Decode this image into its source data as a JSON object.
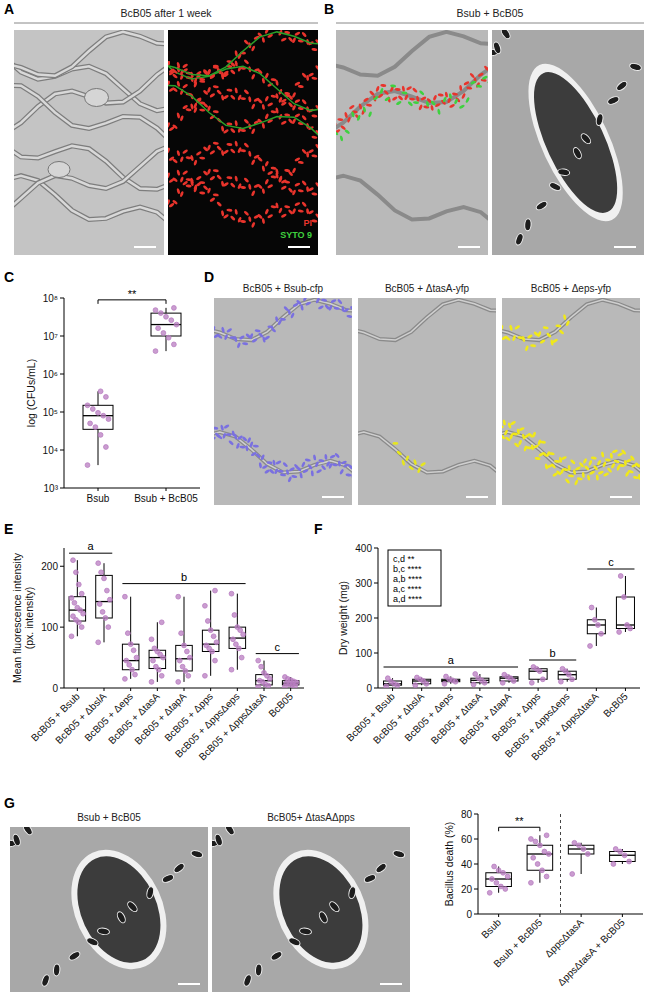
{
  "panel_letters": [
    "A",
    "B",
    "C",
    "D",
    "E",
    "F",
    "G"
  ],
  "images": {
    "A": {
      "title": "BcB05 after 1 week",
      "legend": [
        {
          "label": "PI",
          "color": "#e8342c"
        },
        {
          "label": "SYTO 9",
          "color": "#3fd13f"
        }
      ]
    },
    "B": {
      "title": "Bsub + BcB05"
    },
    "D": {
      "titles": [
        "BcB05 + Bsub-cfp",
        "BcB05 + ΔtasA-yfp",
        "BcB05 + Δeps-yfp"
      ]
    },
    "G": {
      "titles": [
        "Bsub + BcB05",
        "BcB05+ ΔtasAΔpps"
      ]
    }
  },
  "chart_data": [
    {
      "type": "box",
      "y_label": "log (CFUs/mL)",
      "log": "y",
      "color": "#b87cc0",
      "categories": [
        "Bsub",
        "Bsub + BcB05"
      ],
      "ylim": [
        1000,
        100000000
      ],
      "yticks": [
        {
          "value": 1000,
          "label": "10³"
        },
        {
          "value": 10000,
          "label": "10⁴"
        },
        {
          "value": 100000,
          "label": "10⁵"
        },
        {
          "value": 1000000,
          "label": "10⁶"
        },
        {
          "value": 10000000,
          "label": "10⁷"
        },
        {
          "value": 100000000,
          "label": "10⁸"
        }
      ],
      "boxes": [
        {
          "min": 4000,
          "q1": 35000,
          "median": 80000,
          "q3": 150000,
          "max": 350000,
          "points": [
            4000,
            12000,
            25000,
            40000,
            50000,
            65000,
            80000,
            95000,
            120000,
            150000,
            250000,
            350000
          ]
        },
        {
          "min": 4000000,
          "q1": 10000000,
          "median": 20000000,
          "q3": 40000000,
          "max": 55000000,
          "points": [
            4000000,
            6000000,
            9000000,
            12000000,
            16000000,
            20000000,
            26000000,
            32000000,
            40000000,
            48000000,
            55000000
          ]
        }
      ],
      "significance": {
        "label": "**",
        "categories": [
          "Bsub",
          "Bsub + BcB05"
        ]
      }
    },
    {
      "type": "box",
      "y_label": "Mean fluorescence intensity (px. intensity)",
      "color": "#b87cc0",
      "categories": [
        "BcB05 + Bsub",
        "BcB05 + ΔbslA",
        "BcB05 + Δeps",
        "BcB05 + ΔtasA",
        "BcB05 + ΔtapA",
        "BcB05 + Δpps",
        "BcB05 + ΔppsΔeps",
        "BcB05 + ΔppsΔtasA",
        "BcB05"
      ],
      "ylim": [
        0,
        230
      ],
      "yticks": [
        0,
        100,
        200
      ],
      "boxes": [
        {
          "min": 85,
          "q1": 110,
          "median": 128,
          "q3": 150,
          "max": 210,
          "points": [
            85,
            100,
            108,
            112,
            118,
            122,
            128,
            132,
            140,
            148,
            155,
            170,
            190,
            210
          ]
        },
        {
          "min": 75,
          "q1": 115,
          "median": 142,
          "q3": 185,
          "max": 205,
          "points": [
            75,
            100,
            115,
            125,
            138,
            145,
            160,
            180,
            190,
            205
          ]
        },
        {
          "min": 15,
          "q1": 30,
          "median": 45,
          "q3": 72,
          "max": 150,
          "points": [
            15,
            22,
            30,
            38,
            45,
            50,
            62,
            72,
            90,
            150
          ]
        },
        {
          "min": 10,
          "q1": 32,
          "median": 50,
          "q3": 62,
          "max": 108,
          "points": [
            10,
            20,
            30,
            35,
            45,
            50,
            55,
            60,
            65,
            80,
            108
          ]
        },
        {
          "min": 10,
          "q1": 28,
          "median": 48,
          "q3": 70,
          "max": 150,
          "points": [
            10,
            20,
            28,
            35,
            45,
            50,
            60,
            70,
            90,
            150
          ]
        },
        {
          "min": 20,
          "q1": 60,
          "median": 72,
          "q3": 95,
          "max": 160,
          "points": [
            20,
            45,
            60,
            65,
            70,
            75,
            85,
            95,
            110,
            135,
            160
          ]
        },
        {
          "min": 30,
          "q1": 65,
          "median": 82,
          "q3": 100,
          "max": 155,
          "points": [
            30,
            50,
            65,
            72,
            80,
            88,
            95,
            100,
            120,
            155
          ]
        },
        {
          "min": 2,
          "q1": 5,
          "median": 12,
          "q3": 22,
          "max": 45,
          "points": [
            2,
            4,
            6,
            10,
            12,
            15,
            20,
            25,
            35,
            45
          ]
        },
        {
          "min": 2,
          "q1": 5,
          "median": 8,
          "q3": 12,
          "max": 18,
          "points": [
            2,
            3,
            5,
            6,
            8,
            9,
            11,
            13,
            15,
            18
          ]
        }
      ],
      "groups": [
        {
          "label": "a",
          "categories": [
            "BcB05 + Bsub",
            "BcB05 + ΔbslA"
          ]
        },
        {
          "label": "b",
          "categories": [
            "BcB05 + Δeps",
            "BcB05 + ΔppsΔeps"
          ]
        },
        {
          "label": "c",
          "categories": [
            "BcB05 + ΔppsΔtasA",
            "BcB05"
          ]
        }
      ]
    },
    {
      "type": "box",
      "y_label": "Dry weight (mg)",
      "color": "#b87cc0",
      "categories": [
        "BcB05 + Bsub",
        "BcB05 + ΔbslA",
        "BcB05 + Δeps",
        "BcB05 + ΔtasA",
        "BcB05 + ΔtapA",
        "BcB05 + Δpps",
        "BcB05 + ΔppsΔeps",
        "BcB05 + ΔppsΔtasA",
        "BcB05"
      ],
      "ylim": [
        0,
        400
      ],
      "yticks": [
        0,
        100,
        200,
        300,
        400
      ],
      "boxes": [
        {
          "min": 5,
          "q1": 8,
          "median": 12,
          "q3": 20,
          "max": 28,
          "points": [
            5,
            8,
            12,
            18,
            28
          ]
        },
        {
          "min": 8,
          "q1": 12,
          "median": 20,
          "q3": 25,
          "max": 30,
          "points": [
            8,
            12,
            20,
            25,
            30
          ]
        },
        {
          "min": 12,
          "q1": 18,
          "median": 22,
          "q3": 25,
          "max": 33,
          "points": [
            12,
            18,
            22,
            25,
            33
          ]
        },
        {
          "min": 10,
          "q1": 15,
          "median": 22,
          "q3": 28,
          "max": 40,
          "points": [
            10,
            15,
            22,
            28,
            40
          ]
        },
        {
          "min": 15,
          "q1": 20,
          "median": 28,
          "q3": 32,
          "max": 38,
          "points": [
            15,
            20,
            28,
            32,
            38
          ]
        },
        {
          "min": 15,
          "q1": 25,
          "median": 48,
          "q3": 55,
          "max": 60,
          "points": [
            15,
            25,
            48,
            55,
            60
          ]
        },
        {
          "min": 18,
          "q1": 25,
          "median": 38,
          "q3": 48,
          "max": 55,
          "points": [
            18,
            25,
            38,
            48,
            55
          ]
        },
        {
          "min": 120,
          "q1": 155,
          "median": 180,
          "q3": 195,
          "max": 230,
          "points": [
            120,
            155,
            180,
            195,
            230
          ]
        },
        {
          "min": 160,
          "q1": 170,
          "median": 180,
          "q3": 260,
          "max": 320,
          "points": [
            160,
            170,
            180,
            260,
            320
          ]
        }
      ],
      "groups": [
        {
          "label": "a",
          "categories": [
            "BcB05 + Bsub",
            "BcB05 + ΔtapA"
          ]
        },
        {
          "label": "b",
          "categories": [
            "BcB05 + Δpps",
            "BcB05 + ΔppsΔeps"
          ]
        },
        {
          "label": "c",
          "categories": [
            "BcB05 + ΔppsΔtasA",
            "BcB05"
          ]
        }
      ],
      "inset_text": [
        "c,d **",
        "b,c ****",
        "a,b ****",
        "a,c ****",
        "a,d ****"
      ]
    },
    {
      "type": "box",
      "y_label": "Bacillus death (%)",
      "color": "#b87cc0",
      "categories": [
        "Bsub",
        "Bsub + BcB05",
        "ΔppsΔtasA",
        "ΔppsΔtasA + BcB05"
      ],
      "ylim": [
        0,
        80
      ],
      "yticks": [
        0,
        20,
        40,
        60,
        80
      ],
      "boxes": [
        {
          "min": 17,
          "q1": 22,
          "median": 28,
          "q3": 33,
          "max": 38,
          "points": [
            17,
            20,
            22,
            25,
            28,
            30,
            33,
            35,
            38
          ]
        },
        {
          "min": 25,
          "q1": 35,
          "median": 48,
          "q3": 55,
          "max": 63,
          "points": [
            25,
            30,
            35,
            40,
            45,
            48,
            50,
            55,
            58,
            60,
            63
          ]
        },
        {
          "min": 32,
          "q1": 48,
          "median": 52,
          "q3": 55,
          "max": 57,
          "points": [
            32,
            48,
            52,
            55,
            57
          ]
        },
        {
          "min": 40,
          "q1": 42,
          "median": 47,
          "q3": 50,
          "max": 52,
          "points": [
            40,
            42,
            47,
            50,
            52
          ]
        }
      ],
      "significance": {
        "label": "**",
        "categories": [
          "Bsub",
          "Bsub + BcB05"
        ]
      },
      "divider_after": "Bsub + BcB05"
    }
  ]
}
